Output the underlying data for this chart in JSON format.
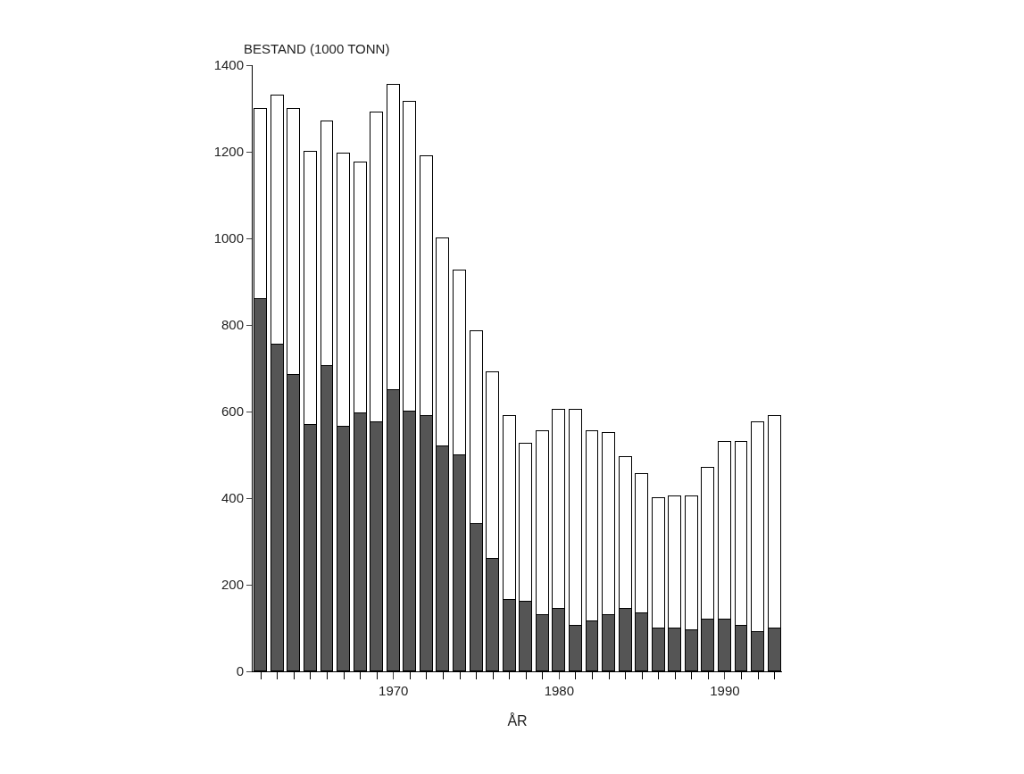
{
  "chart_data": {
    "type": "bar",
    "stacked": true,
    "ylabel": "BESTAND (1000 TONN)",
    "xlabel": "ÅR",
    "x": [
      1962,
      1963,
      1964,
      1965,
      1966,
      1967,
      1968,
      1969,
      1970,
      1971,
      1972,
      1973,
      1974,
      1975,
      1976,
      1977,
      1978,
      1979,
      1980,
      1981,
      1982,
      1983,
      1984,
      1985,
      1986,
      1987,
      1988,
      1989,
      1990,
      1991,
      1992,
      1993
    ],
    "series": [
      {
        "color": "#555555",
        "values": [
          860,
          755,
          685,
          570,
          705,
          565,
          595,
          575,
          650,
          600,
          590,
          520,
          500,
          340,
          260,
          165,
          160,
          130,
          145,
          105,
          115,
          130,
          145,
          135,
          100,
          100,
          95,
          120,
          120,
          105,
          90,
          100
        ]
      },
      {
        "color": "#ffffff",
        "values": [
          440,
          575,
          615,
          630,
          565,
          630,
          580,
          715,
          705,
          715,
          600,
          480,
          425,
          445,
          430,
          425,
          365,
          425,
          460,
          500,
          440,
          420,
          350,
          320,
          300,
          305,
          310,
          350,
          410,
          425,
          485,
          490
        ]
      }
    ],
    "xlim": [
      1961.5,
      1993.45
    ],
    "xticks": [
      1970,
      1980,
      1990
    ],
    "ylim": [
      0,
      1400
    ],
    "yticks": [
      0,
      200,
      400,
      600,
      800,
      1000,
      1200,
      1400
    ]
  }
}
